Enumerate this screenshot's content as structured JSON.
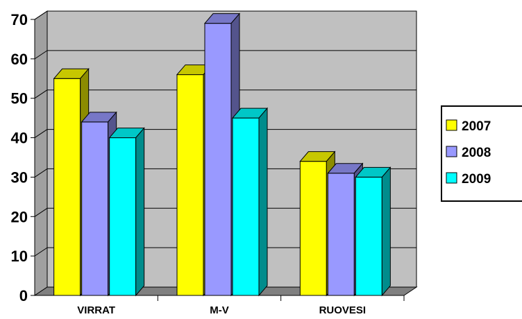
{
  "chart_data": {
    "type": "bar",
    "categories": [
      "VIRRAT",
      "M-V",
      "RUOVESI"
    ],
    "series": [
      {
        "name": "2007",
        "values": [
          55,
          56,
          34
        ],
        "color": "#FFFF00"
      },
      {
        "name": "2008",
        "values": [
          44,
          69,
          31
        ],
        "color": "#9999FF"
      },
      {
        "name": "2009",
        "values": [
          40,
          45,
          30
        ],
        "color": "#00FFFF"
      }
    ],
    "ylim": [
      0,
      70
    ],
    "yticks": [
      "0",
      "10",
      "20",
      "30",
      "40",
      "50",
      "60",
      "70"
    ],
    "grid": true,
    "legend": "right",
    "plot_background": "#C0C0C0"
  }
}
